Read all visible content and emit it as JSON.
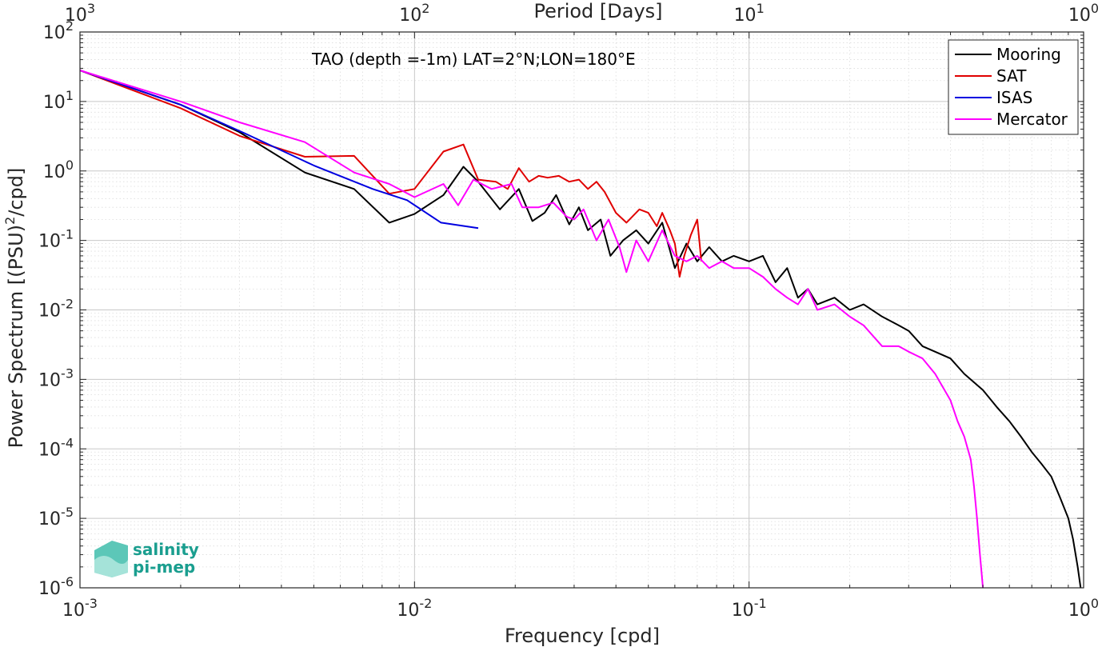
{
  "chart_data": {
    "type": "line",
    "title": "TAO (depth =-1m) LAT=2°N;LON=180°E",
    "xlabel": "Frequency [cpd]",
    "ylabel": "Power Spectrum [(PSU)²/cpd]",
    "x2label": "Period [Days]",
    "xscale": "log",
    "yscale": "log",
    "xlim": [
      0.001,
      1
    ],
    "ylim": [
      1e-06,
      100
    ],
    "grid": true,
    "legend_position": "top-right",
    "x_ticks": [
      {
        "value": 0.001,
        "base": "10",
        "exp": "-3"
      },
      {
        "value": 0.01,
        "base": "10",
        "exp": "-2"
      },
      {
        "value": 0.1,
        "base": "10",
        "exp": "-1"
      },
      {
        "value": 1,
        "base": "10",
        "exp": "0"
      }
    ],
    "x2_ticks": [
      {
        "value": 0.001,
        "base": "10",
        "exp": "3"
      },
      {
        "value": 0.01,
        "base": "10",
        "exp": "2"
      },
      {
        "value": 0.1,
        "base": "10",
        "exp": "1"
      },
      {
        "value": 1,
        "base": "10",
        "exp": "0"
      }
    ],
    "y_ticks": [
      {
        "value": 100,
        "base": "10",
        "exp": "2"
      },
      {
        "value": 10,
        "base": "10",
        "exp": "1"
      },
      {
        "value": 1,
        "base": "10",
        "exp": "0"
      },
      {
        "value": 0.1,
        "base": "10",
        "exp": "-1"
      },
      {
        "value": 0.01,
        "base": "10",
        "exp": "-2"
      },
      {
        "value": 0.001,
        "base": "10",
        "exp": "-3"
      },
      {
        "value": 0.0001,
        "base": "10",
        "exp": "-4"
      },
      {
        "value": 1e-05,
        "base": "10",
        "exp": "-5"
      },
      {
        "value": 1e-06,
        "base": "10",
        "exp": "-6"
      }
    ],
    "series": [
      {
        "name": "Mooring",
        "color": "#000000",
        "points": [
          [
            0.001,
            28
          ],
          [
            0.002,
            9
          ],
          [
            0.003,
            3.6
          ],
          [
            0.0047,
            0.95
          ],
          [
            0.0066,
            0.55
          ],
          [
            0.0084,
            0.18
          ],
          [
            0.01,
            0.24
          ],
          [
            0.0122,
            0.45
          ],
          [
            0.014,
            1.15
          ],
          [
            0.0155,
            0.7
          ],
          [
            0.018,
            0.28
          ],
          [
            0.0205,
            0.55
          ],
          [
            0.0225,
            0.19
          ],
          [
            0.0245,
            0.25
          ],
          [
            0.0265,
            0.45
          ],
          [
            0.029,
            0.17
          ],
          [
            0.031,
            0.3
          ],
          [
            0.033,
            0.14
          ],
          [
            0.036,
            0.2
          ],
          [
            0.0385,
            0.06
          ],
          [
            0.042,
            0.1
          ],
          [
            0.046,
            0.14
          ],
          [
            0.05,
            0.09
          ],
          [
            0.055,
            0.18
          ],
          [
            0.06,
            0.04
          ],
          [
            0.065,
            0.09
          ],
          [
            0.07,
            0.05
          ],
          [
            0.076,
            0.08
          ],
          [
            0.083,
            0.05
          ],
          [
            0.09,
            0.06
          ],
          [
            0.1,
            0.05
          ],
          [
            0.11,
            0.06
          ],
          [
            0.12,
            0.025
          ],
          [
            0.13,
            0.04
          ],
          [
            0.14,
            0.015
          ],
          [
            0.15,
            0.02
          ],
          [
            0.16,
            0.012
          ],
          [
            0.18,
            0.015
          ],
          [
            0.2,
            0.01
          ],
          [
            0.22,
            0.012
          ],
          [
            0.25,
            0.008
          ],
          [
            0.28,
            0.006
          ],
          [
            0.3,
            0.005
          ],
          [
            0.33,
            0.003
          ],
          [
            0.36,
            0.0025
          ],
          [
            0.4,
            0.002
          ],
          [
            0.44,
            0.0012
          ],
          [
            0.5,
            0.0007
          ],
          [
            0.55,
            0.0004
          ],
          [
            0.6,
            0.00025
          ],
          [
            0.65,
            0.00015
          ],
          [
            0.7,
            9e-05
          ],
          [
            0.75,
            6e-05
          ],
          [
            0.8,
            4e-05
          ],
          [
            0.85,
            2e-05
          ],
          [
            0.9,
            1e-05
          ],
          [
            0.93,
            5e-06
          ],
          [
            0.96,
            2e-06
          ],
          [
            0.98,
            1e-06
          ]
        ]
      },
      {
        "name": "SAT",
        "color": "#e00000",
        "points": [
          [
            0.001,
            28
          ],
          [
            0.002,
            8
          ],
          [
            0.003,
            3.2
          ],
          [
            0.0047,
            1.6
          ],
          [
            0.0066,
            1.65
          ],
          [
            0.0084,
            0.47
          ],
          [
            0.01,
            0.55
          ],
          [
            0.0122,
            1.9
          ],
          [
            0.014,
            2.4
          ],
          [
            0.0155,
            0.75
          ],
          [
            0.0175,
            0.7
          ],
          [
            0.019,
            0.55
          ],
          [
            0.0205,
            1.1
          ],
          [
            0.022,
            0.7
          ],
          [
            0.0235,
            0.85
          ],
          [
            0.025,
            0.8
          ],
          [
            0.027,
            0.85
          ],
          [
            0.029,
            0.7
          ],
          [
            0.031,
            0.75
          ],
          [
            0.033,
            0.55
          ],
          [
            0.035,
            0.7
          ],
          [
            0.037,
            0.5
          ],
          [
            0.04,
            0.25
          ],
          [
            0.043,
            0.18
          ],
          [
            0.047,
            0.28
          ],
          [
            0.05,
            0.25
          ],
          [
            0.053,
            0.16
          ],
          [
            0.055,
            0.25
          ],
          [
            0.058,
            0.14
          ],
          [
            0.06,
            0.09
          ],
          [
            0.062,
            0.03
          ],
          [
            0.064,
            0.06
          ],
          [
            0.067,
            0.12
          ],
          [
            0.07,
            0.2
          ],
          [
            0.072,
            0.05
          ]
        ]
      },
      {
        "name": "ISAS",
        "color": "#0000e0",
        "points": [
          [
            0.001,
            28
          ],
          [
            0.002,
            9
          ],
          [
            0.0031,
            3.5
          ],
          [
            0.005,
            1.2
          ],
          [
            0.0075,
            0.55
          ],
          [
            0.0095,
            0.38
          ],
          [
            0.012,
            0.18
          ],
          [
            0.0155,
            0.15
          ]
        ]
      },
      {
        "name": "Mercator",
        "color": "#ff00ff",
        "points": [
          [
            0.001,
            28
          ],
          [
            0.002,
            10
          ],
          [
            0.003,
            5
          ],
          [
            0.0047,
            2.6
          ],
          [
            0.0066,
            0.95
          ],
          [
            0.0084,
            0.65
          ],
          [
            0.01,
            0.42
          ],
          [
            0.0122,
            0.65
          ],
          [
            0.0135,
            0.32
          ],
          [
            0.015,
            0.75
          ],
          [
            0.017,
            0.55
          ],
          [
            0.0195,
            0.65
          ],
          [
            0.021,
            0.3
          ],
          [
            0.0235,
            0.3
          ],
          [
            0.026,
            0.35
          ],
          [
            0.0285,
            0.22
          ],
          [
            0.03,
            0.2
          ],
          [
            0.032,
            0.28
          ],
          [
            0.035,
            0.1
          ],
          [
            0.038,
            0.2
          ],
          [
            0.041,
            0.08
          ],
          [
            0.043,
            0.035
          ],
          [
            0.046,
            0.1
          ],
          [
            0.05,
            0.05
          ],
          [
            0.055,
            0.14
          ],
          [
            0.06,
            0.06
          ],
          [
            0.065,
            0.05
          ],
          [
            0.07,
            0.06
          ],
          [
            0.076,
            0.04
          ],
          [
            0.083,
            0.05
          ],
          [
            0.09,
            0.04
          ],
          [
            0.1,
            0.04
          ],
          [
            0.11,
            0.03
          ],
          [
            0.12,
            0.02
          ],
          [
            0.13,
            0.015
          ],
          [
            0.14,
            0.012
          ],
          [
            0.15,
            0.02
          ],
          [
            0.16,
            0.01
          ],
          [
            0.18,
            0.012
          ],
          [
            0.2,
            0.008
          ],
          [
            0.22,
            0.006
          ],
          [
            0.25,
            0.003
          ],
          [
            0.28,
            0.003
          ],
          [
            0.3,
            0.0025
          ],
          [
            0.33,
            0.002
          ],
          [
            0.36,
            0.0012
          ],
          [
            0.4,
            0.0005
          ],
          [
            0.42,
            0.00025
          ],
          [
            0.44,
            0.00015
          ],
          [
            0.46,
            7e-05
          ],
          [
            0.47,
            3e-05
          ],
          [
            0.48,
            1e-05
          ],
          [
            0.49,
            3e-06
          ],
          [
            0.5,
            1e-06
          ]
        ]
      }
    ]
  },
  "logo": {
    "line1": "salinity",
    "line2": "pi-mep"
  }
}
